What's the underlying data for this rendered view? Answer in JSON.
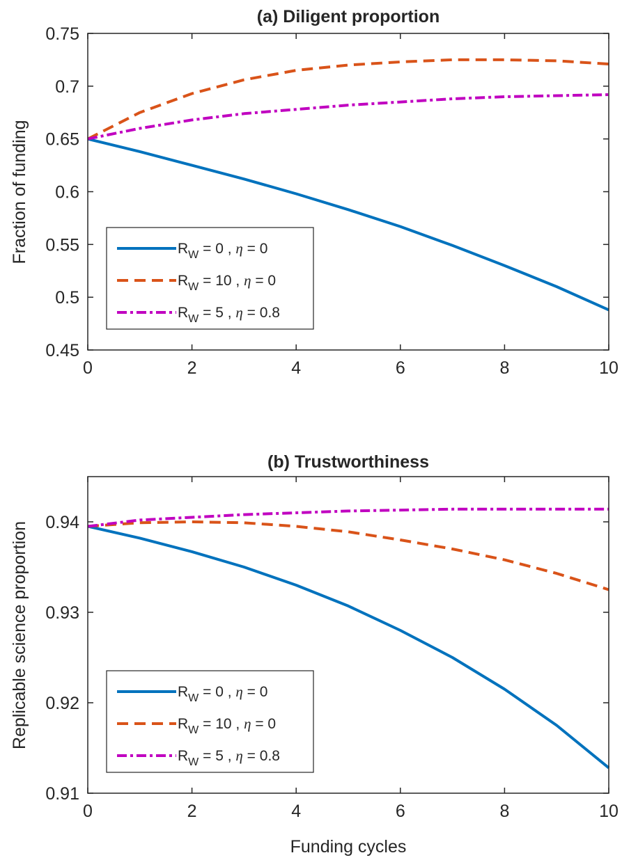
{
  "colors": {
    "blue": "#0072bd",
    "orange": "#d95319",
    "magenta": "#c000c0",
    "axis": "#262626"
  },
  "legend_entries": [
    {
      "r_prefix": "R",
      "r_sub": "W",
      "r_value": " = 0 , ",
      "eta_symbol": "η",
      "eta_value": " = 0"
    },
    {
      "r_prefix": "R",
      "r_sub": "W",
      "r_value": " = 10 , ",
      "eta_symbol": "η",
      "eta_value": " = 0"
    },
    {
      "r_prefix": "R",
      "r_sub": "W",
      "r_value": " = 5 , ",
      "eta_symbol": "η",
      "eta_value": " = 0.8"
    }
  ],
  "chart_data": [
    {
      "type": "line",
      "title": "(a) Diligent proportion",
      "xlabel": "",
      "ylabel": "Fraction of funding",
      "xlim": [
        0,
        10
      ],
      "ylim": [
        0.45,
        0.75
      ],
      "xticks": [
        "0",
        "2",
        "4",
        "6",
        "8",
        "10"
      ],
      "yticks": [
        "0.45",
        "0.5",
        "0.55",
        "0.6",
        "0.65",
        "0.7",
        "0.75"
      ],
      "grid": false,
      "legend_position": "bottom-left",
      "x": [
        0,
        1,
        2,
        3,
        4,
        5,
        6,
        7,
        8,
        9,
        10
      ],
      "series": [
        {
          "name": "R_W = 0 , η = 0",
          "style": "solid",
          "color": "blue",
          "values": [
            0.65,
            0.638,
            0.625,
            0.612,
            0.598,
            0.583,
            0.567,
            0.549,
            0.53,
            0.51,
            0.488
          ]
        },
        {
          "name": "R_W = 10 , η = 0",
          "style": "dashed",
          "color": "orange",
          "values": [
            0.65,
            0.675,
            0.693,
            0.706,
            0.715,
            0.72,
            0.723,
            0.725,
            0.725,
            0.724,
            0.721
          ]
        },
        {
          "name": "R_W = 5 , η = 0.8",
          "style": "dashdot",
          "color": "magenta",
          "values": [
            0.65,
            0.66,
            0.668,
            0.674,
            0.678,
            0.682,
            0.685,
            0.688,
            0.69,
            0.691,
            0.692
          ]
        }
      ]
    },
    {
      "type": "line",
      "title": "(b) Trustworthiness",
      "xlabel": "Funding cycles",
      "ylabel": "Replicable science proportion",
      "xlim": [
        0,
        10
      ],
      "ylim": [
        0.91,
        0.945
      ],
      "xticks": [
        "0",
        "2",
        "4",
        "6",
        "8",
        "10"
      ],
      "yticks": [
        "0.91",
        "0.92",
        "0.93",
        "0.94"
      ],
      "grid": false,
      "legend_position": "bottom-left",
      "x": [
        0,
        1,
        2,
        3,
        4,
        5,
        6,
        7,
        8,
        9,
        10
      ],
      "series": [
        {
          "name": "R_W = 0 , η = 0",
          "style": "solid",
          "color": "blue",
          "values": [
            0.9395,
            0.9382,
            0.9367,
            0.935,
            0.933,
            0.9307,
            0.928,
            0.925,
            0.9215,
            0.9175,
            0.9128
          ]
        },
        {
          "name": "R_W = 10 , η = 0",
          "style": "dashed",
          "color": "orange",
          "values": [
            0.9395,
            0.9399,
            0.94,
            0.9399,
            0.9395,
            0.9389,
            0.938,
            0.937,
            0.9358,
            0.9343,
            0.9325
          ]
        },
        {
          "name": "R_W = 5 , η = 0.8",
          "style": "dashdot",
          "color": "magenta",
          "values": [
            0.9395,
            0.9402,
            0.9405,
            0.9408,
            0.941,
            0.9412,
            0.9413,
            0.9414,
            0.9414,
            0.9414,
            0.9414
          ]
        }
      ]
    }
  ]
}
